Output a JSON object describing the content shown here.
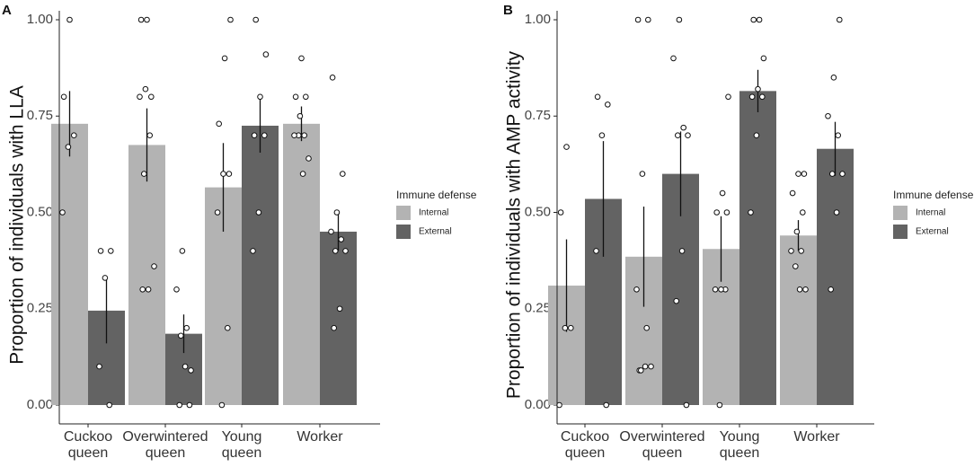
{
  "chart_data": [
    {
      "type": "bar",
      "panel_label": "A",
      "ylabel": "Proportion of individuals with LLA",
      "xlabel": "",
      "ylim": [
        0,
        1
      ],
      "yticks": [
        "0.00",
        "0.25",
        "0.50",
        "0.75",
        "1.00"
      ],
      "categories": [
        [
          "Cuckoo",
          "queen"
        ],
        [
          "Overwintered",
          "queen"
        ],
        [
          "Young",
          "queen"
        ],
        [
          "Worker"
        ]
      ],
      "legend_title": "Immune defense",
      "series": [
        {
          "name": "Internal",
          "color": "#b3b3b3",
          "values": [
            0.73,
            0.675,
            0.565,
            0.73
          ],
          "err": [
            0.085,
            0.095,
            0.115,
            0.045
          ],
          "points": [
            [
              0.5,
              0.67,
              0.7,
              0.8,
              1.0
            ],
            [
              0.3,
              0.3,
              0.36,
              0.6,
              0.7,
              0.8,
              0.82,
              0.8,
              1.0,
              1.0
            ],
            [
              0.0,
              0.2,
              0.5,
              0.6,
              0.6,
              0.73,
              0.9,
              1.0
            ],
            [
              0.6,
              0.64,
              0.7,
              0.7,
              0.7,
              0.75,
              0.8,
              0.8,
              0.9
            ]
          ]
        },
        {
          "name": "External",
          "color": "#636363",
          "values": [
            0.245,
            0.185,
            0.725,
            0.45
          ],
          "err": [
            0.085,
            0.05,
            0.07,
            0.05
          ],
          "points": [
            [
              0.0,
              0.1,
              0.33,
              0.4,
              0.4
            ],
            [
              0.0,
              0.0,
              0.1,
              0.09,
              0.18,
              0.2,
              0.3,
              0.4
            ],
            [
              0.4,
              0.5,
              0.7,
              0.7,
              0.8,
              0.91,
              1.0
            ],
            [
              0.2,
              0.25,
              0.4,
              0.4,
              0.43,
              0.45,
              0.5,
              0.6,
              0.85
            ]
          ]
        }
      ]
    },
    {
      "type": "bar",
      "panel_label": "B",
      "ylabel": "Proportion of individuals with AMP activity",
      "xlabel": "",
      "ylim": [
        0,
        1
      ],
      "yticks": [
        "0.00",
        "0.25",
        "0.50",
        "0.75",
        "1.00"
      ],
      "categories": [
        [
          "Cuckoo",
          "queen"
        ],
        [
          "Overwintered",
          "queen"
        ],
        [
          "Young",
          "queen"
        ],
        [
          "Worker"
        ]
      ],
      "legend_title": "Immune defense",
      "series": [
        {
          "name": "Internal",
          "color": "#b3b3b3",
          "values": [
            0.31,
            0.385,
            0.405,
            0.44
          ],
          "err": [
            0.12,
            0.13,
            0.085,
            0.04
          ],
          "points": [
            [
              0.0,
              0.2,
              0.2,
              0.5,
              0.67
            ],
            [
              0.09,
              0.1,
              0.1,
              0.09,
              0.2,
              0.3,
              0.6,
              1.0,
              1.0
            ],
            [
              0.0,
              0.3,
              0.3,
              0.3,
              0.5,
              0.5,
              0.55,
              0.8
            ],
            [
              0.3,
              0.3,
              0.36,
              0.4,
              0.4,
              0.45,
              0.5,
              0.55,
              0.6,
              0.6
            ]
          ]
        },
        {
          "name": "External",
          "color": "#636363",
          "values": [
            0.535,
            0.6,
            0.815,
            0.665
          ],
          "err": [
            0.15,
            0.11,
            0.055,
            0.07
          ],
          "points": [
            [
              0.0,
              0.4,
              0.7,
              0.78,
              0.8
            ],
            [
              0.0,
              0.27,
              0.4,
              0.7,
              0.7,
              0.72,
              0.9,
              1.0
            ],
            [
              0.5,
              0.7,
              0.8,
              0.8,
              0.82,
              0.9,
              1.0,
              1.0
            ],
            [
              0.3,
              0.5,
              0.6,
              0.6,
              0.7,
              0.75,
              0.85,
              1.0
            ]
          ]
        }
      ]
    }
  ]
}
